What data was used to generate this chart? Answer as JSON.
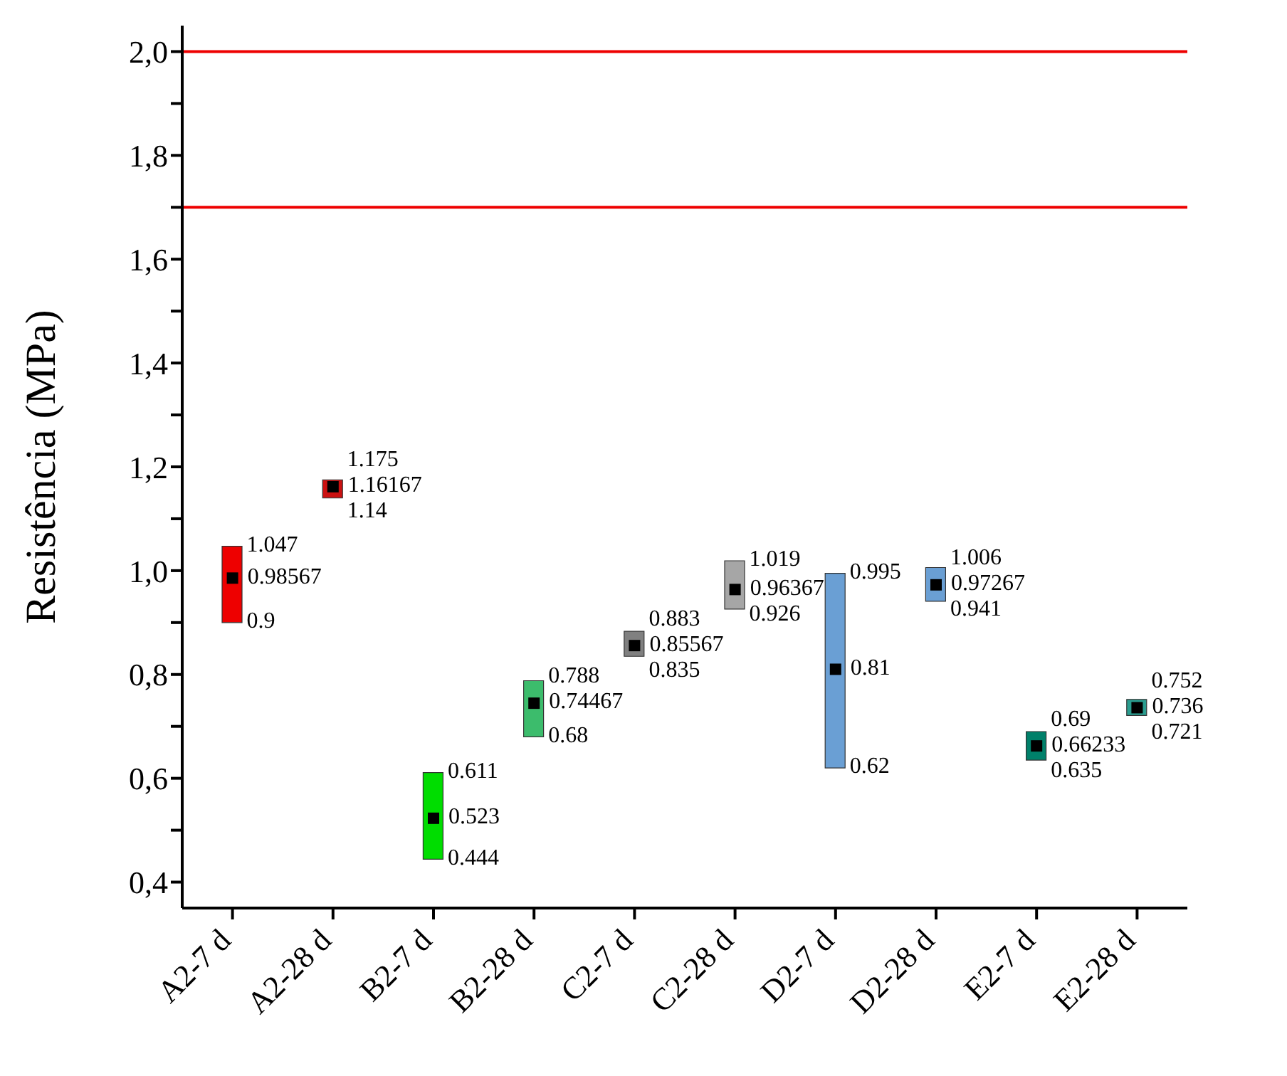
{
  "chart_data": {
    "type": "bar",
    "ylabel": "Resistência (MPa)",
    "categories": [
      "A2-7 d",
      "A2-28 d",
      "B2-7 d",
      "B2-28 d",
      "C2-7 d",
      "C2-28 d",
      "D2-7 d",
      "D2-28 d",
      "E2-7 d",
      "E2-28 d"
    ],
    "series": [
      {
        "type": "bar",
        "base": [
          0.9,
          1.14,
          0.444,
          0.68,
          0.835,
          0.926,
          0.62,
          0.941,
          0.635,
          0.721
        ],
        "values": [
          0.147,
          0.035,
          0.167,
          0.108,
          0.048,
          0.093,
          0.375,
          0.065,
          0.055,
          0.031
        ],
        "colors": [
          "#ee0000",
          "#cc1111",
          "#00dd00",
          "#3cbc6c",
          "#808080",
          "#a6a6a6",
          "#6a9fd4",
          "#6a9fd4",
          "#00806a",
          "#2a9d8f"
        ]
      },
      {
        "type": "scatter",
        "x": [
          "A2-7 d",
          "A2-28 d",
          "B2-7 d",
          "B2-28 d",
          "C2-7 d",
          "C2-28 d",
          "D2-7 d",
          "D2-28 d",
          "E2-7 d",
          "E2-28 d"
        ],
        "values": [
          0.98567,
          1.16167,
          0.523,
          0.74467,
          0.85567,
          0.96367,
          0.81,
          0.97267,
          0.66233,
          0.736
        ],
        "color": "#000000",
        "value_labels": [
          "0.98567",
          "1.16167",
          "0.523",
          "0.74467",
          "0.85567",
          "0.96367",
          "0.81",
          "0.97267",
          "0.66233",
          "0.736"
        ]
      }
    ],
    "annotations": [
      {
        "text": "1.047",
        "x": "A2-7 d",
        "y": 1.047
      },
      {
        "text": "0.9",
        "x": "A2-7 d",
        "y": 0.9
      },
      {
        "text": "1.175",
        "x": "A2-28 d",
        "y": 1.175
      },
      {
        "text": "1.14",
        "x": "A2-28 d",
        "y": 1.14
      },
      {
        "text": "0.611",
        "x": "B2-7 d",
        "y": 0.611
      },
      {
        "text": "0.444",
        "x": "B2-7 d",
        "y": 0.444
      },
      {
        "text": "0.788",
        "x": "B2-28 d",
        "y": 0.788
      },
      {
        "text": "0.68",
        "x": "B2-28 d",
        "y": 0.68
      },
      {
        "text": "0.883",
        "x": "C2-7 d",
        "y": 0.883
      },
      {
        "text": "0.835",
        "x": "C2-7 d",
        "y": 0.835
      },
      {
        "text": "1.019",
        "x": "C2-28 d",
        "y": 1.019
      },
      {
        "text": "0.926",
        "x": "C2-28 d",
        "y": 0.926
      },
      {
        "text": "0.995",
        "x": "D2-7 d",
        "y": 0.995
      },
      {
        "text": "0.62",
        "x": "D2-7 d",
        "y": 0.62
      },
      {
        "text": "1.006",
        "x": "D2-28 d",
        "y": 1.006
      },
      {
        "text": "0.941",
        "x": "D2-28 d",
        "y": 0.941
      },
      {
        "text": "0.69",
        "x": "E2-7 d",
        "y": 0.69
      },
      {
        "text": "0.635",
        "x": "E2-7 d",
        "y": 0.635
      },
      {
        "text": "0.752",
        "x": "E2-28 d",
        "y": 0.752
      },
      {
        "text": "0.721",
        "x": "E2-28 d",
        "y": 0.721
      }
    ],
    "ylim": [
      0.35,
      2.05
    ],
    "yticks": [
      {
        "value": 0.4,
        "label": "0,4"
      },
      {
        "value": 0.5,
        "label": null
      },
      {
        "value": 0.6,
        "label": "0,6"
      },
      {
        "value": 0.7,
        "label": null
      },
      {
        "value": 0.8,
        "label": "0,8"
      },
      {
        "value": 0.9,
        "label": null
      },
      {
        "value": 1.0,
        "label": "1,0"
      },
      {
        "value": 1.1,
        "label": null
      },
      {
        "value": 1.2,
        "label": "1,2"
      },
      {
        "value": 1.3,
        "label": null
      },
      {
        "value": 1.4,
        "label": "1,4"
      },
      {
        "value": 1.5,
        "label": null
      },
      {
        "value": 1.6,
        "label": "1,6"
      },
      {
        "value": 1.7,
        "label": null
      },
      {
        "value": 1.8,
        "label": "1,8"
      },
      {
        "value": 1.9,
        "label": null
      },
      {
        "value": 2.0,
        "label": "2,0"
      }
    ],
    "ref_lines": [
      {
        "axis": "y",
        "value": 2.0,
        "color": "#ee0000"
      },
      {
        "axis": "y",
        "value": 1.7,
        "color": "#ee0000"
      }
    ],
    "marker": "square",
    "grid": false
  }
}
